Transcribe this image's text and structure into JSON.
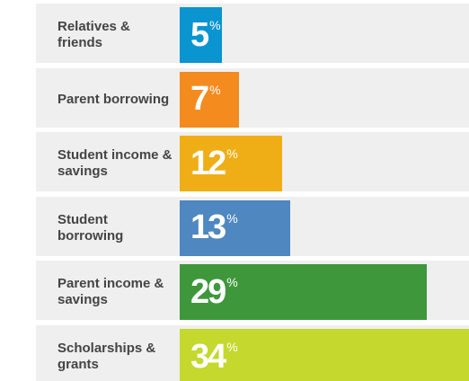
{
  "chart_data": {
    "type": "bar",
    "orientation": "horizontal",
    "categories": [
      "Relatives & friends",
      "Parent borrowing",
      "Student income & savings",
      "Student borrowing",
      "Parent income & savings",
      "Scholarships & grants"
    ],
    "values": [
      5,
      7,
      12,
      13,
      29,
      34
    ],
    "value_labels": [
      "5%",
      "7%",
      "12%",
      "13%",
      "29%",
      "34%"
    ],
    "colors": [
      "#0a94d0",
      "#f38b1f",
      "#f0ae16",
      "#4f87c1",
      "#3f973c",
      "#c4d82e"
    ]
  }
}
